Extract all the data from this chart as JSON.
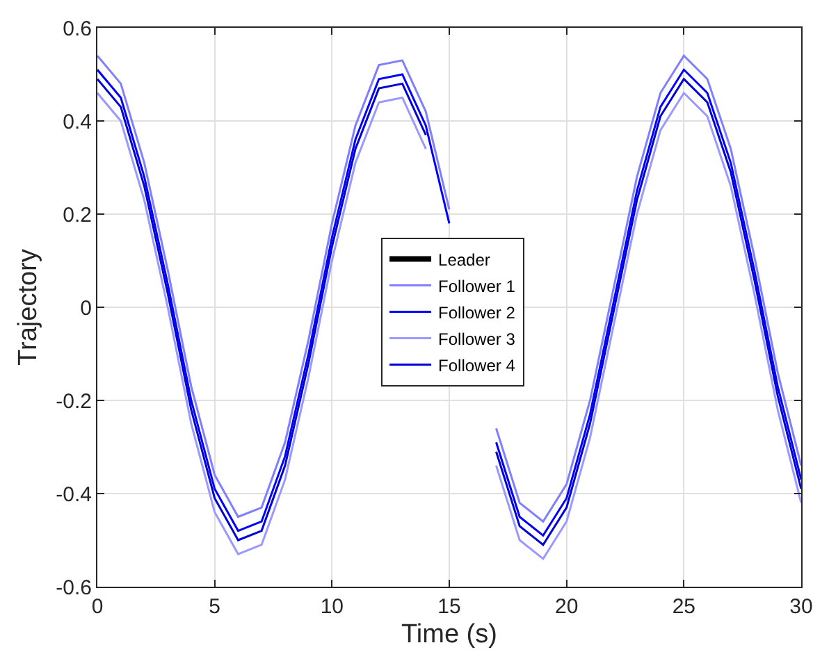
{
  "chart_data": {
    "type": "line",
    "xlabel": "Time (s)",
    "ylabel": "Trajectory",
    "x": [
      0,
      1,
      2,
      3,
      4,
      5,
      6,
      7,
      8,
      9,
      10,
      11,
      12,
      13,
      14,
      15,
      16,
      17,
      18,
      19,
      20,
      21,
      22,
      23,
      24,
      25,
      26,
      27,
      28,
      29,
      30
    ],
    "series": [
      {
        "name": "Leader",
        "color": "#000000",
        "values": [
          null,
          null,
          null,
          null,
          null,
          null,
          null,
          null,
          null,
          null,
          null,
          null,
          null,
          null,
          null,
          null,
          null,
          null,
          null,
          null,
          null,
          null,
          null,
          null,
          null,
          null,
          null,
          null,
          null,
          null,
          null
        ]
      },
      {
        "name": "Follower 1",
        "color": "#7f7fff",
        "values": [
          0.54,
          0.48,
          0.31,
          0.08,
          -0.17,
          -0.36,
          -0.45,
          -0.43,
          -0.29,
          -0.07,
          0.18,
          0.39,
          0.52,
          0.53,
          0.42,
          0.21,
          null,
          -0.26,
          -0.42,
          -0.46,
          -0.38,
          -0.2,
          0.04,
          0.28,
          0.46,
          0.54,
          0.49,
          0.34,
          0.11,
          -0.14,
          -0.34
        ]
      },
      {
        "name": "Follower 2",
        "color": "#0000ff",
        "values": [
          0.51,
          0.45,
          0.28,
          0.05,
          -0.2,
          -0.39,
          -0.48,
          -0.46,
          -0.32,
          -0.1,
          0.15,
          0.36,
          0.49,
          0.5,
          0.39,
          0.18,
          null,
          -0.29,
          -0.45,
          -0.49,
          -0.41,
          -0.23,
          0.01,
          0.25,
          0.43,
          0.51,
          0.46,
          0.31,
          0.08,
          -0.17,
          -0.37
        ]
      },
      {
        "name": "Follower 3",
        "color": "#9999ff",
        "values": [
          0.46,
          0.4,
          0.23,
          0.0,
          -0.25,
          -0.44,
          -0.53,
          -0.51,
          -0.37,
          -0.15,
          0.1,
          0.31,
          0.44,
          0.45,
          0.34,
          null,
          null,
          -0.34,
          -0.5,
          -0.54,
          -0.46,
          -0.28,
          -0.04,
          0.2,
          0.38,
          0.46,
          0.41,
          0.26,
          0.03,
          -0.22,
          -0.42
        ]
      },
      {
        "name": "Follower 4",
        "color": "#0000d8",
        "values": [
          0.49,
          0.43,
          0.26,
          0.03,
          -0.22,
          -0.41,
          -0.5,
          -0.48,
          -0.34,
          -0.12,
          0.13,
          0.34,
          0.47,
          0.48,
          0.37,
          null,
          null,
          -0.31,
          -0.47,
          -0.51,
          -0.43,
          -0.25,
          -0.01,
          0.23,
          0.41,
          0.49,
          0.44,
          0.29,
          0.06,
          -0.19,
          -0.39
        ]
      }
    ],
    "xlim": [
      0,
      30
    ],
    "xticks": [
      0,
      5,
      10,
      15,
      20,
      25,
      30
    ],
    "ylim": [
      -0.6,
      0.6
    ],
    "yticks": [
      -0.6,
      -0.4,
      -0.2,
      0,
      0.2,
      0.4,
      0.6
    ],
    "grid": true,
    "legend": "center"
  }
}
